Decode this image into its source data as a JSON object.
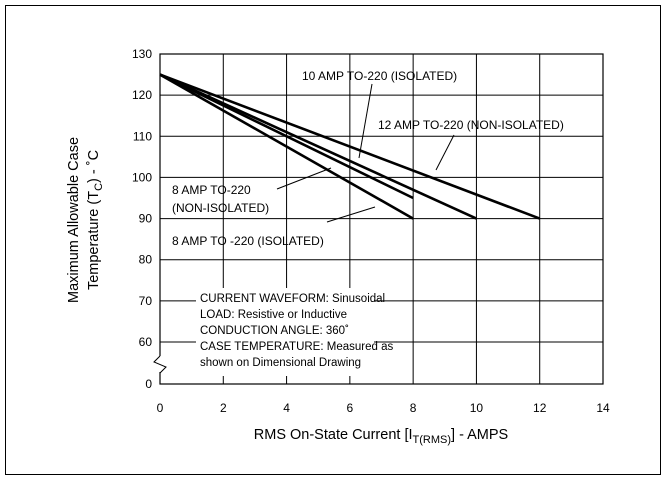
{
  "chart_data": {
    "type": "line",
    "xlabel": "RMS On-State Current [I",
    "xlabel_sub": "T(RMS)",
    "xlabel_tail": "] - AMPS",
    "ylabel_line1": "Maximum Allowable Case",
    "ylabel_line2_pre": "Temperature (T",
    "ylabel_line2_sub": "C",
    "ylabel_line2_post": ") - ˚C",
    "x_ticks": [
      "0",
      "2",
      "4",
      "6",
      "8",
      "10",
      "12",
      "14"
    ],
    "y_ticks": [
      "0",
      "60",
      "70",
      "80",
      "90",
      "100",
      "110",
      "120",
      "130"
    ],
    "xlim": [
      0,
      14
    ],
    "ylim": [
      55,
      130
    ],
    "axis_break": true,
    "grid": true,
    "series": [
      {
        "name": "12 AMP TO-220 (NON-ISOLATED)",
        "x": [
          0,
          12
        ],
        "y": [
          125,
          90
        ]
      },
      {
        "name": "10 AMP TO-220 (ISOLATED)",
        "x": [
          0,
          10
        ],
        "y": [
          125,
          90
        ]
      },
      {
        "name": "8 AMP TO-220 (NON-ISOLATED)",
        "x": [
          0,
          8
        ],
        "y": [
          125,
          95
        ]
      },
      {
        "name": "8 AMP TO -220 (ISOLATED)",
        "x": [
          0,
          8
        ],
        "y": [
          125,
          90
        ]
      }
    ],
    "annotations": {
      "label_10a": "10 AMP TO-220 (ISOLATED)",
      "label_12a": "12 AMP TO-220 (NON-ISOLATED)",
      "label_8a_non_l1": "8 AMP TO-220",
      "label_8a_non_l2": "(NON-ISOLATED)",
      "label_8a_iso": "8 AMP TO -220 (ISOLATED)",
      "notes": [
        "CURRENT WAVEFORM: Sinusoidal",
        "LOAD: Resistive or Inductive",
        "CONDUCTION ANGLE: 360˚",
        "CASE TEMPERATURE: Measured as",
        "shown on Dimensional Drawing"
      ]
    }
  }
}
